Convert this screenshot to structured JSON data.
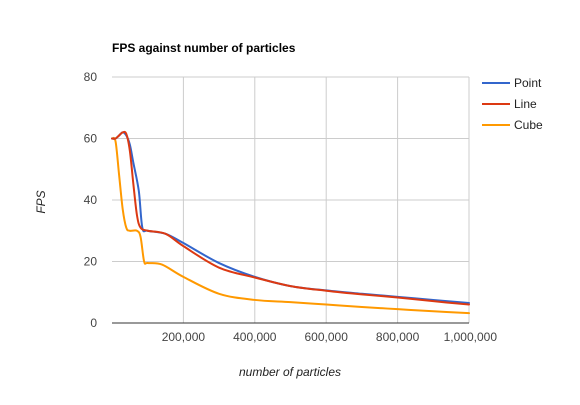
{
  "chart_data": {
    "type": "line",
    "title": "FPS against number of particles",
    "xlabel": "number of particles",
    "ylabel": "FPS",
    "xlim": [
      0,
      1000000
    ],
    "ylim": [
      0,
      80
    ],
    "grid": true,
    "legend_position": "right",
    "x_tick_values": [
      200000,
      400000,
      600000,
      800000,
      1000000
    ],
    "x_tick_labels": [
      "200,000",
      "400,000",
      "600,000",
      "800,000",
      "1,000,000"
    ],
    "y_tick_values": [
      0,
      20,
      40,
      60,
      80
    ],
    "y_tick_labels": [
      "0",
      "20",
      "40",
      "60",
      "80"
    ],
    "series": [
      {
        "name": "Point",
        "color": "#3366cc",
        "points": [
          [
            0,
            60
          ],
          [
            10000,
            60
          ],
          [
            20000,
            61
          ],
          [
            30000,
            62
          ],
          [
            40000,
            61
          ],
          [
            50000,
            58
          ],
          [
            60000,
            52
          ],
          [
            75000,
            43
          ],
          [
            85000,
            31
          ],
          [
            100000,
            30
          ],
          [
            150000,
            29
          ],
          [
            200000,
            26
          ],
          [
            300000,
            19.5
          ],
          [
            400000,
            15
          ],
          [
            500000,
            12
          ],
          [
            600000,
            10.6
          ],
          [
            700000,
            9.5
          ],
          [
            800000,
            8.5
          ],
          [
            900000,
            7.5
          ],
          [
            1000000,
            6.5
          ]
        ]
      },
      {
        "name": "Line",
        "color": "#dc3912",
        "points": [
          [
            0,
            60
          ],
          [
            10000,
            60
          ],
          [
            20000,
            61
          ],
          [
            30000,
            62
          ],
          [
            40000,
            61.5
          ],
          [
            50000,
            56
          ],
          [
            60000,
            45
          ],
          [
            70000,
            35
          ],
          [
            80000,
            31
          ],
          [
            100000,
            30
          ],
          [
            150000,
            29
          ],
          [
            200000,
            25
          ],
          [
            300000,
            18
          ],
          [
            400000,
            14.8
          ],
          [
            500000,
            12
          ],
          [
            600000,
            10.5
          ],
          [
            700000,
            9.3
          ],
          [
            800000,
            8.3
          ],
          [
            900000,
            7.1
          ],
          [
            1000000,
            6
          ]
        ]
      },
      {
        "name": "Cube",
        "color": "#ff9900",
        "points": [
          [
            0,
            60
          ],
          [
            10000,
            59
          ],
          [
            20000,
            48
          ],
          [
            30000,
            37
          ],
          [
            40000,
            31
          ],
          [
            50000,
            30
          ],
          [
            70000,
            30
          ],
          [
            80000,
            28
          ],
          [
            90000,
            20
          ],
          [
            100000,
            19.5
          ],
          [
            140000,
            19
          ],
          [
            200000,
            15
          ],
          [
            300000,
            9.5
          ],
          [
            400000,
            7.5
          ],
          [
            500000,
            6.8
          ],
          [
            600000,
            6
          ],
          [
            700000,
            5.2
          ],
          [
            800000,
            4.5
          ],
          [
            900000,
            3.8
          ],
          [
            1000000,
            3.2
          ]
        ]
      }
    ]
  }
}
